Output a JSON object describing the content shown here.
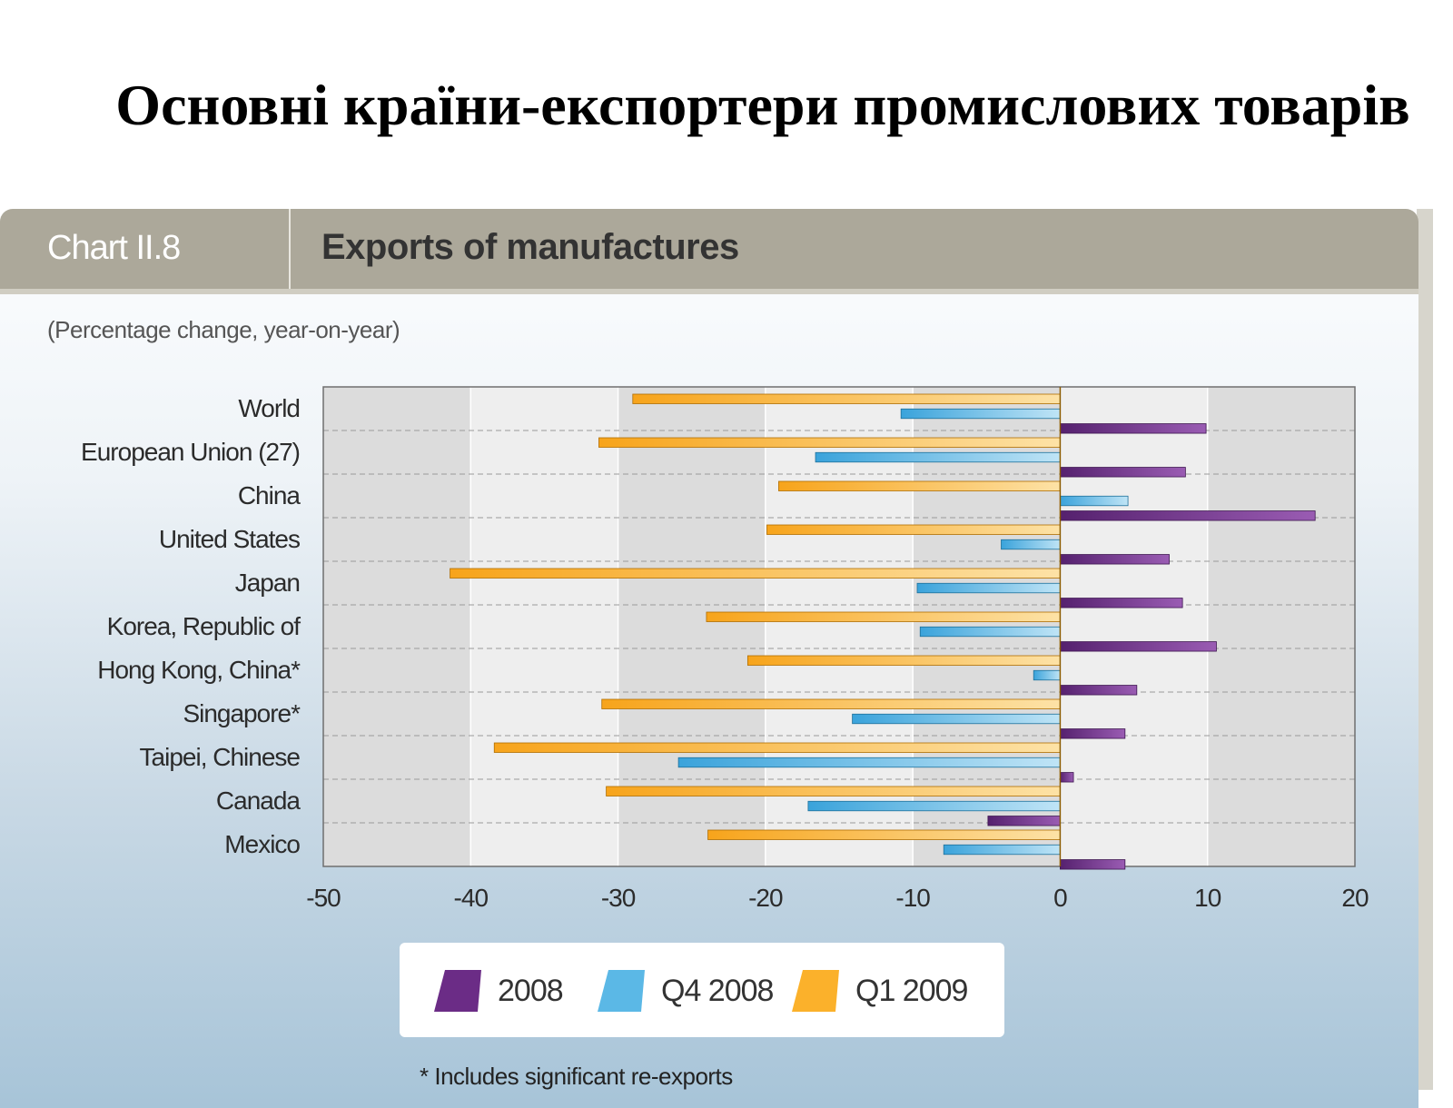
{
  "slide": {
    "title": "Основні країни-експортери промислових товарів"
  },
  "panel": {
    "chart_number": "Chart II.8",
    "chart_title": "Exports of manufactures",
    "subtitle": "(Percentage change, year-on-year)",
    "footnote": "* Includes significant re-exports"
  },
  "colors": {
    "2008": "#6b2c86",
    "Q4 2008": "#5bb8e6",
    "Q1 2009": "#fbb12b"
  },
  "chart_data": {
    "type": "bar",
    "orientation": "horizontal",
    "categories": [
      "World",
      "European Union (27)",
      "China",
      "United States",
      "Japan",
      "Korea, Republic of",
      "Hong Kong, China*",
      "Singapore*",
      "Taipei, Chinese",
      "Canada",
      "Mexico"
    ],
    "series": [
      {
        "name": "Q1 2009",
        "values": [
          -29,
          -31.3,
          -19.1,
          -19.9,
          -41.4,
          -24,
          -21.2,
          -31.1,
          -38.4,
          -30.8,
          -23.9
        ]
      },
      {
        "name": "Q4 2008",
        "values": [
          -10.8,
          -16.6,
          4.6,
          -4,
          -9.7,
          -9.5,
          -1.8,
          -14.1,
          -25.9,
          -17.1,
          -7.9
        ]
      },
      {
        "name": "2008",
        "values": [
          9.9,
          8.5,
          17.3,
          7.4,
          8.3,
          10.6,
          5.2,
          4.4,
          0.9,
          -4.9,
          4.4
        ]
      }
    ],
    "xlim": [
      -50,
      20
    ],
    "xticks": [
      "-50",
      "-40",
      "-30",
      "-20",
      "-10",
      "0",
      "10",
      "20"
    ],
    "legend": [
      "2008",
      "Q4 2008",
      "Q1 2009"
    ],
    "legend_position": "bottom"
  }
}
